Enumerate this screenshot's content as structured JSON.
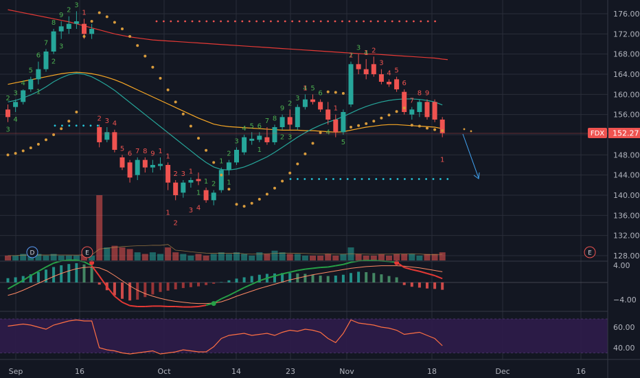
{
  "ticker_label": "FDX",
  "last_price_label": "152.27",
  "chart_data": [
    {
      "type": "candlestick",
      "name": "price",
      "y_ticks": [
        128,
        132,
        136,
        140,
        144,
        148,
        152,
        156,
        160,
        164,
        168,
        172,
        176
      ],
      "ylim": [
        126.5,
        178
      ],
      "x_tick_labels": [
        "Sep",
        "16",
        "Oct",
        "14",
        "23",
        "Nov",
        "18",
        "Dec",
        "16"
      ],
      "candles": [
        {
          "o": 157,
          "h": 158,
          "l": 154.5,
          "c": 155.5
        },
        {
          "o": 157.5,
          "h": 159,
          "l": 156.5,
          "c": 158.5
        },
        {
          "o": 158.5,
          "h": 161,
          "l": 158,
          "c": 160.8
        },
        {
          "o": 161,
          "h": 163.5,
          "l": 160.5,
          "c": 163
        },
        {
          "o": 163,
          "h": 166.5,
          "l": 162,
          "c": 165
        },
        {
          "o": 165,
          "h": 169,
          "l": 164.5,
          "c": 168.5
        },
        {
          "o": 168.5,
          "h": 173,
          "l": 168,
          "c": 172.5
        },
        {
          "o": 172.5,
          "h": 174.5,
          "l": 171,
          "c": 173.5
        },
        {
          "o": 173,
          "h": 175.5,
          "l": 172,
          "c": 174
        },
        {
          "o": 174,
          "h": 176.5,
          "l": 173,
          "c": 174.5
        },
        {
          "o": 174,
          "h": 175,
          "l": 171,
          "c": 172
        },
        {
          "o": 172,
          "h": 174,
          "l": 171,
          "c": 173
        },
        {
          "o": 153.5,
          "h": 154,
          "l": 149.5,
          "c": 150.5
        },
        {
          "o": 151,
          "h": 153.5,
          "l": 150.5,
          "c": 152.5
        },
        {
          "o": 152.5,
          "h": 153,
          "l": 148.5,
          "c": 149
        },
        {
          "o": 147.5,
          "h": 148,
          "l": 145,
          "c": 145.5
        },
        {
          "o": 146.5,
          "h": 147,
          "l": 142.5,
          "c": 143.5
        },
        {
          "o": 144,
          "h": 147.5,
          "l": 143,
          "c": 147
        },
        {
          "o": 147,
          "h": 147.5,
          "l": 144.5,
          "c": 145.5
        },
        {
          "o": 145.5,
          "h": 147,
          "l": 144.5,
          "c": 146
        },
        {
          "o": 145.8,
          "h": 147.5,
          "l": 145,
          "c": 146.2
        },
        {
          "o": 146,
          "h": 146.5,
          "l": 141,
          "c": 142.5
        },
        {
          "o": 142.5,
          "h": 143,
          "l": 139,
          "c": 140
        },
        {
          "o": 140.5,
          "h": 143,
          "l": 139.5,
          "c": 142.5
        },
        {
          "o": 142.5,
          "h": 143.5,
          "l": 141.5,
          "c": 143
        },
        {
          "o": 143.2,
          "h": 144.5,
          "l": 142,
          "c": 142.8
        },
        {
          "o": 141,
          "h": 141.5,
          "l": 138.5,
          "c": 139
        },
        {
          "o": 139,
          "h": 141,
          "l": 138,
          "c": 140.5
        },
        {
          "o": 141,
          "h": 145.5,
          "l": 140.5,
          "c": 145
        },
        {
          "o": 145,
          "h": 147,
          "l": 144,
          "c": 146.5
        },
        {
          "o": 146.5,
          "h": 149.5,
          "l": 146,
          "c": 149
        },
        {
          "o": 148.5,
          "h": 152,
          "l": 148,
          "c": 151.5
        },
        {
          "o": 150.8,
          "h": 152.5,
          "l": 150,
          "c": 151.2
        },
        {
          "o": 151,
          "h": 152.5,
          "l": 150.5,
          "c": 151.8
        },
        {
          "o": 151.5,
          "h": 153.5,
          "l": 150,
          "c": 150.5
        },
        {
          "o": 150.5,
          "h": 154,
          "l": 150,
          "c": 153.5
        },
        {
          "o": 153.5,
          "h": 156,
          "l": 153,
          "c": 155.5
        },
        {
          "o": 155.5,
          "h": 157,
          "l": 153,
          "c": 154
        },
        {
          "o": 153.5,
          "h": 158,
          "l": 153,
          "c": 157.5
        },
        {
          "o": 157.5,
          "h": 160,
          "l": 157,
          "c": 159
        },
        {
          "o": 159,
          "h": 160,
          "l": 158,
          "c": 158.5
        },
        {
          "o": 158.5,
          "h": 159,
          "l": 156.5,
          "c": 157
        },
        {
          "o": 157,
          "h": 158.5,
          "l": 154,
          "c": 155
        },
        {
          "o": 155,
          "h": 156,
          "l": 151.5,
          "c": 152.5
        },
        {
          "o": 152.5,
          "h": 157,
          "l": 152,
          "c": 156.5
        },
        {
          "o": 158,
          "h": 166.5,
          "l": 157.5,
          "c": 166
        },
        {
          "o": 166,
          "h": 168,
          "l": 164,
          "c": 165
        },
        {
          "o": 165,
          "h": 167,
          "l": 163,
          "c": 164
        },
        {
          "o": 166,
          "h": 167.5,
          "l": 163.5,
          "c": 164
        },
        {
          "o": 164,
          "h": 165,
          "l": 162,
          "c": 162.5
        },
        {
          "o": 162.5,
          "h": 163,
          "l": 161.5,
          "c": 162
        },
        {
          "o": 163,
          "h": 163.5,
          "l": 160.5,
          "c": 161
        },
        {
          "o": 160.5,
          "h": 161,
          "l": 156,
          "c": 156.5
        },
        {
          "o": 156,
          "h": 157.5,
          "l": 155,
          "c": 157
        },
        {
          "o": 156.5,
          "h": 159,
          "l": 155.5,
          "c": 158.5
        },
        {
          "o": 158.5,
          "h": 159,
          "l": 155,
          "c": 155.5
        },
        {
          "o": 158.5,
          "h": 159,
          "l": 154.5,
          "c": 155
        },
        {
          "o": 155,
          "h": 155.5,
          "l": 151.5,
          "c": 152.3
        }
      ],
      "overlays": [
        {
          "name": "sma_long",
          "color": "#e53935",
          "values": [
            176.8,
            176.5,
            176.2,
            175.9,
            175.6,
            175.3,
            175.0,
            174.7,
            174.4,
            174.0,
            173.6,
            173.2,
            172.8,
            172.4,
            172.0,
            171.7,
            171.4,
            171.2,
            171.0,
            170.8,
            170.7,
            170.6,
            170.5,
            170.4,
            170.3,
            170.2,
            170.1,
            170.0,
            169.9,
            169.8,
            169.7,
            169.6,
            169.5,
            169.4,
            169.3,
            169.2,
            169.1,
            169.0,
            168.9,
            168.8,
            168.7,
            168.6,
            168.5,
            168.4,
            168.3,
            168.2,
            168.1,
            168.0,
            168.0,
            167.9,
            167.8,
            167.7,
            167.6,
            167.5,
            167.4,
            167.3,
            167.2,
            167.0
          ]
        },
        {
          "name": "ema_medium",
          "color": "#f9a825",
          "values": [
            162,
            162.3,
            162.6,
            162.9,
            163.2,
            163.5,
            163.8,
            164.1,
            164.3,
            164.4,
            164.3,
            164.1,
            163.8,
            163.4,
            162.9,
            162.3,
            161.6,
            160.9,
            160.2,
            159.5,
            158.8,
            158.1,
            157.4,
            156.7,
            156.0,
            155.3,
            154.7,
            154.1,
            153.8,
            153.6,
            153.5,
            153.4,
            153.3,
            153.2,
            153.1,
            153.0,
            152.9,
            152.9,
            152.9,
            152.8,
            152.8,
            152.7,
            152.6,
            152.5,
            152.6,
            152.9,
            153.2,
            153.5,
            153.7,
            153.9,
            154.0,
            154.0,
            153.9,
            153.8,
            153.7,
            153.6,
            153.5,
            153.2
          ]
        },
        {
          "name": "ema_short",
          "color": "#26a69a",
          "values": [
            158.5,
            158.8,
            159.3,
            159.9,
            160.6,
            161.5,
            162.5,
            163.3,
            163.9,
            164.2,
            164.0,
            163.5,
            162.7,
            161.8,
            160.8,
            159.6,
            158.4,
            157.2,
            156.0,
            154.8,
            153.6,
            152.4,
            151.2,
            150.0,
            148.8,
            147.6,
            146.5,
            145.6,
            145.1,
            145.0,
            145.2,
            145.6,
            146.2,
            146.9,
            147.6,
            148.5,
            149.5,
            150.5,
            151.5,
            152.4,
            153.2,
            153.9,
            154.5,
            155.0,
            155.6,
            156.3,
            157.0,
            157.6,
            158.1,
            158.5,
            158.8,
            159.0,
            159.1,
            159.1,
            159.0,
            158.8,
            158.5,
            157.9
          ]
        }
      ],
      "annotations": [
        {
          "text": "FDX"
        },
        {
          "text": "152.27"
        }
      ]
    },
    {
      "type": "bar",
      "name": "volume",
      "values": [
        3,
        3,
        4,
        3,
        4,
        3,
        4,
        3,
        3,
        3,
        4,
        3,
        40,
        8,
        9,
        8,
        7,
        5,
        4,
        5,
        4,
        8,
        5,
        4,
        3,
        4,
        3,
        4,
        5,
        4,
        5,
        4,
        3,
        5,
        4,
        6,
        5,
        4,
        4,
        3,
        3,
        3,
        4,
        3,
        4,
        8,
        4,
        3,
        3,
        4,
        3,
        4,
        4,
        4,
        3,
        4,
        4,
        5
      ]
    },
    {
      "type": "bar",
      "name": "macd",
      "y_ticks": [
        4,
        -4
      ],
      "ylim": [
        -6,
        6
      ],
      "values": [
        1.0,
        1.2,
        1.5,
        1.9,
        2.4,
        3.0,
        3.6,
        4.0,
        4.3,
        4.5,
        4.2,
        3.5,
        -0.5,
        -1.8,
        -3.0,
        -3.8,
        -4.2,
        -4.0,
        -3.4,
        -2.8,
        -2.2,
        -1.9,
        -1.6,
        -1.3,
        -1.1,
        -0.9,
        -0.6,
        -0.3,
        0.1,
        0.5,
        0.9,
        1.2,
        1.5,
        1.8,
        2.0,
        2.1,
        2.2,
        2.2,
        2.1,
        2.0,
        1.8,
        1.6,
        1.5,
        1.6,
        1.8,
        2.2,
        2.5,
        2.4,
        2.2,
        1.9,
        1.5,
        1.2,
        -0.6,
        -1.0,
        -1.2,
        -1.4,
        -1.5,
        -1.7
      ],
      "signal": [
        -3.0,
        -2.5,
        -1.8,
        -1.0,
        -0.2,
        0.6,
        1.4,
        2.1,
        2.7,
        3.2,
        3.5,
        3.6,
        3.4,
        2.7,
        1.6,
        0.4,
        -0.8,
        -1.8,
        -2.6,
        -3.2,
        -3.7,
        -4.1,
        -4.4,
        -4.6,
        -4.8,
        -4.9,
        -4.9,
        -4.8,
        -4.5,
        -3.9,
        -3.2,
        -2.6,
        -2.0,
        -1.4,
        -0.9,
        -0.4,
        0.1,
        0.6,
        1.0,
        1.4,
        1.8,
        2.1,
        2.4,
        2.7,
        3.0,
        3.3,
        3.5,
        3.7,
        3.8,
        3.9,
        3.9,
        3.9,
        3.8,
        3.6,
        3.4,
        3.1,
        2.8,
        2.5
      ],
      "macd_line": [
        -1.5,
        -0.5,
        0.5,
        1.6,
        2.6,
        3.6,
        4.5,
        5.0,
        5.2,
        5.2,
        4.8,
        3.9,
        1.5,
        -1.0,
        -3.2,
        -4.6,
        -5.4,
        -5.6,
        -5.6,
        -5.5,
        -5.5,
        -5.6,
        -5.6,
        -5.7,
        -5.7,
        -5.6,
        -5.3,
        -4.8,
        -3.8,
        -3.0,
        -2.1,
        -1.2,
        -0.4,
        0.4,
        1.0,
        1.5,
        2.0,
        2.4,
        2.8,
        3.1,
        3.3,
        3.5,
        3.6,
        3.9,
        4.2,
        4.7,
        5.0,
        5.1,
        5.1,
        5.0,
        4.9,
        4.7,
        3.5,
        3.0,
        2.6,
        2.1,
        1.6,
        0.9
      ],
      "cross_points": [
        {
          "index": 11,
          "value": 4.6
        },
        {
          "index": 27,
          "value": -4.9
        },
        {
          "index": 51,
          "value": 4.6
        }
      ]
    },
    {
      "type": "line",
      "name": "rsi",
      "y_ticks": [
        60,
        40
      ],
      "ylim": [
        29,
        73
      ],
      "band": [
        35,
        68
      ],
      "values": [
        61,
        62,
        63,
        62,
        60,
        58,
        62,
        64,
        66,
        67,
        66,
        66,
        40,
        38,
        37,
        35,
        34,
        35,
        36,
        37,
        34,
        35,
        36,
        38,
        37,
        36,
        36,
        41,
        49,
        52,
        53,
        54,
        52,
        53,
        54,
        52,
        55,
        57,
        56,
        58,
        57,
        55,
        49,
        45,
        54,
        67,
        64,
        63,
        62,
        60,
        59,
        57,
        53,
        54,
        55,
        52,
        49,
        42
      ]
    }
  ],
  "td_sequential": {
    "green_above": [
      {
        "i": 0,
        "n": "2"
      },
      {
        "i": 1,
        "n": "3"
      },
      {
        "i": 2,
        "n": "4"
      },
      {
        "i": 3,
        "n": "5"
      },
      {
        "i": 4,
        "n": "6"
      },
      {
        "i": 5,
        "n": "7"
      },
      {
        "i": 6,
        "n": "8"
      },
      {
        "i": 7,
        "n": "9"
      },
      {
        "i": 8,
        "n": "2"
      },
      {
        "i": 9,
        "n": "3"
      },
      {
        "i": 26,
        "n": "1"
      },
      {
        "i": 27,
        "n": "2"
      },
      {
        "i": 28,
        "n": "1"
      },
      {
        "i": 29,
        "n": "2"
      },
      {
        "i": 30,
        "n": "3"
      },
      {
        "i": 31,
        "n": "4"
      },
      {
        "i": 32,
        "n": "5"
      },
      {
        "i": 33,
        "n": "6"
      },
      {
        "i": 34,
        "n": "7"
      },
      {
        "i": 35,
        "n": "8"
      },
      {
        "i": 36,
        "n": "9"
      },
      {
        "i": 37,
        "n": "2"
      },
      {
        "i": 38,
        "n": "3"
      },
      {
        "i": 39,
        "n": "4"
      },
      {
        "i": 40,
        "n": "5"
      },
      {
        "i": 41,
        "n": "6"
      },
      {
        "i": 45,
        "n": "2"
      },
      {
        "i": 46,
        "n": "3"
      },
      {
        "i": 47,
        "n": "4"
      }
    ],
    "green_below": [
      {
        "i": 0,
        "n": "3"
      },
      {
        "i": 1,
        "n": "4"
      },
      {
        "i": 4,
        "n": "1"
      },
      {
        "i": 6,
        "n": "2"
      },
      {
        "i": 7,
        "n": "3"
      },
      {
        "i": 25,
        "n": "1"
      },
      {
        "i": 29,
        "n": "1"
      },
      {
        "i": 33,
        "n": "1"
      },
      {
        "i": 36,
        "n": "2"
      },
      {
        "i": 37,
        "n": "3"
      },
      {
        "i": 42,
        "n": "4"
      },
      {
        "i": 44,
        "n": "5"
      }
    ],
    "red_above": [
      {
        "i": 10,
        "n": "1"
      },
      {
        "i": 12,
        "n": "2"
      },
      {
        "i": 13,
        "n": "3"
      },
      {
        "i": 14,
        "n": "4"
      },
      {
        "i": 15,
        "n": "5"
      },
      {
        "i": 16,
        "n": "6"
      },
      {
        "i": 17,
        "n": "7"
      },
      {
        "i": 18,
        "n": "8"
      },
      {
        "i": 19,
        "n": "9"
      },
      {
        "i": 20,
        "n": "1"
      },
      {
        "i": 21,
        "n": "1"
      },
      {
        "i": 22,
        "n": "2"
      },
      {
        "i": 23,
        "n": "3"
      },
      {
        "i": 24,
        "n": "1"
      },
      {
        "i": 39,
        "n": "1"
      },
      {
        "i": 43,
        "n": "1"
      },
      {
        "i": 45,
        "n": "1"
      },
      {
        "i": 47,
        "n": "1"
      },
      {
        "i": 48,
        "n": "2"
      },
      {
        "i": 49,
        "n": "3"
      },
      {
        "i": 50,
        "n": "4"
      },
      {
        "i": 51,
        "n": "5"
      },
      {
        "i": 52,
        "n": "6"
      },
      {
        "i": 53,
        "n": "7"
      },
      {
        "i": 54,
        "n": "8"
      },
      {
        "i": 55,
        "n": "9"
      }
    ],
    "red_below": [
      {
        "i": 21,
        "n": "1"
      },
      {
        "i": 22,
        "n": "2"
      },
      {
        "i": 24,
        "n": "3"
      },
      {
        "i": 25,
        "n": "4"
      },
      {
        "i": 57,
        "n": "1"
      }
    ]
  },
  "levels": [
    {
      "name": "resistance",
      "color": "#ef5350",
      "value": 174.5
    },
    {
      "name": "support-1",
      "color": "#26c6da",
      "value": 153.8
    },
    {
      "name": "support-2",
      "color": "#26c6da",
      "value": 143.2
    }
  ],
  "event_badges": [
    {
      "label": "D"
    },
    {
      "label": "E"
    },
    {
      "label": "E"
    }
  ],
  "colors": {
    "background": "#131722",
    "grid": "#2a2e39",
    "up": "#26a69a",
    "down": "#ef5350",
    "rsi": "#ff7043",
    "rsi_band": "#2f1c4a"
  }
}
